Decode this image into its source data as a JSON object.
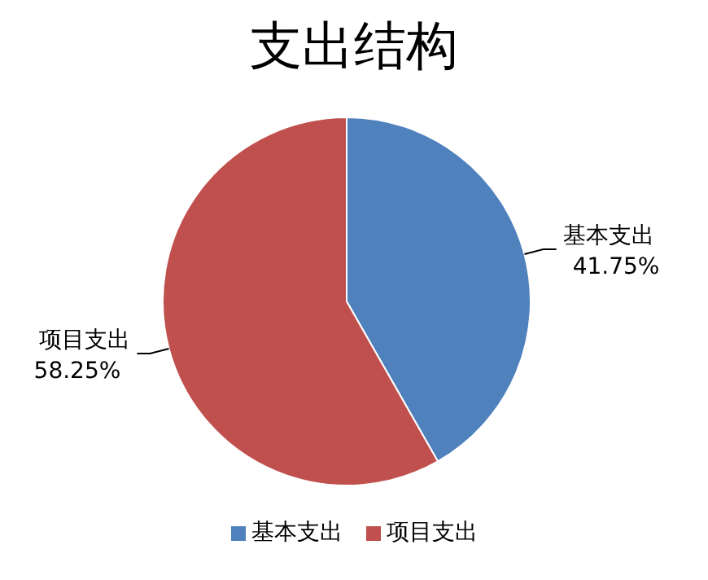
{
  "chart_data": {
    "type": "pie",
    "title": "支出结构",
    "categories": [
      "基本支出",
      "项目支出"
    ],
    "values": [
      41.75,
      58.25
    ],
    "colors": [
      "#4f81bd",
      "#c0504d"
    ],
    "value_labels": [
      "41.75%",
      "58.25%"
    ],
    "legend": "bottom"
  }
}
